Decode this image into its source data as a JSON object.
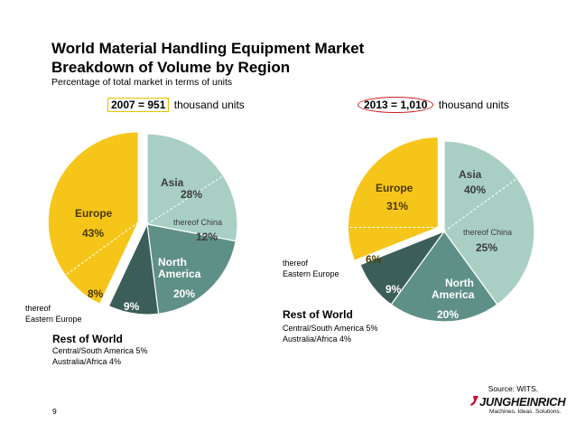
{
  "header": {
    "title_line1": "World Material Handling Equipment Market",
    "title_line2": "Breakdown of Volume by Region",
    "subtitle": "Percentage of total market in terms of units"
  },
  "chart_data": [
    {
      "type": "pie",
      "year_label": "2007 = 951",
      "units_label": "thousand units",
      "slices": [
        {
          "name": "Asia",
          "value": 28,
          "label": "28%",
          "color": "#a9cfc5",
          "sub": {
            "name": "thereof China",
            "value": 12,
            "label": "12%"
          }
        },
        {
          "name": "North America",
          "value": 20,
          "label": "20%",
          "color": "#5f9087"
        },
        {
          "name": "Rest of World",
          "value": 9,
          "label": "9%",
          "color": "#3b5f58"
        },
        {
          "name": "Europe",
          "value": 43,
          "label": "43%",
          "color": "#f6c51a",
          "sub": {
            "name": "thereof Eastern Europe",
            "value": 8,
            "label": "8%"
          }
        }
      ],
      "labels": {
        "asia": "Asia",
        "na_line1": "North",
        "na_line2": "America",
        "europe": "Europe",
        "china": "thereof China",
        "ee_line1": "thereof",
        "ee_line2": "Eastern Europe",
        "row": "Rest of World",
        "row_detail1": "Central/South America 5%",
        "row_detail2": "Australia/Africa 4%"
      }
    },
    {
      "type": "pie",
      "year_label": "2013 = 1,010",
      "units_label": "thousand units",
      "slices": [
        {
          "name": "Asia",
          "value": 40,
          "label": "40%",
          "color": "#a9cfc5",
          "sub": {
            "name": "thereof China",
            "value": 25,
            "label": "25%"
          }
        },
        {
          "name": "North America",
          "value": 20,
          "label": "20%",
          "color": "#5f9087"
        },
        {
          "name": "Rest of World",
          "value": 9,
          "label": "9%",
          "color": "#3b5f58"
        },
        {
          "name": "Europe",
          "value": 31,
          "label": "31%",
          "color": "#f6c51a",
          "sub": {
            "name": "thereof Eastern Europe",
            "value": 6,
            "label": "6%"
          }
        }
      ],
      "labels": {
        "asia": "Asia",
        "na_line1": "North",
        "na_line2": "America",
        "europe": "Europe",
        "china": "thereof China",
        "ee_line1": "thereof",
        "ee_line2": "Eastern Europe",
        "row": "Rest of World",
        "row_detail1": "Central/South America 5%",
        "row_detail2": "Australia/Africa 4%"
      }
    }
  ],
  "footer": {
    "source": "Source: WITS.",
    "page_number": "9",
    "logo_name": "JUNGHEINRICH",
    "logo_tagline": "Machines. Ideas. Solutions."
  },
  "colors": {
    "highlight_box": "#e8c200",
    "highlight_oval": "#d41c1c",
    "divider": "#ffffff",
    "sub_divider": "#ffffff"
  }
}
